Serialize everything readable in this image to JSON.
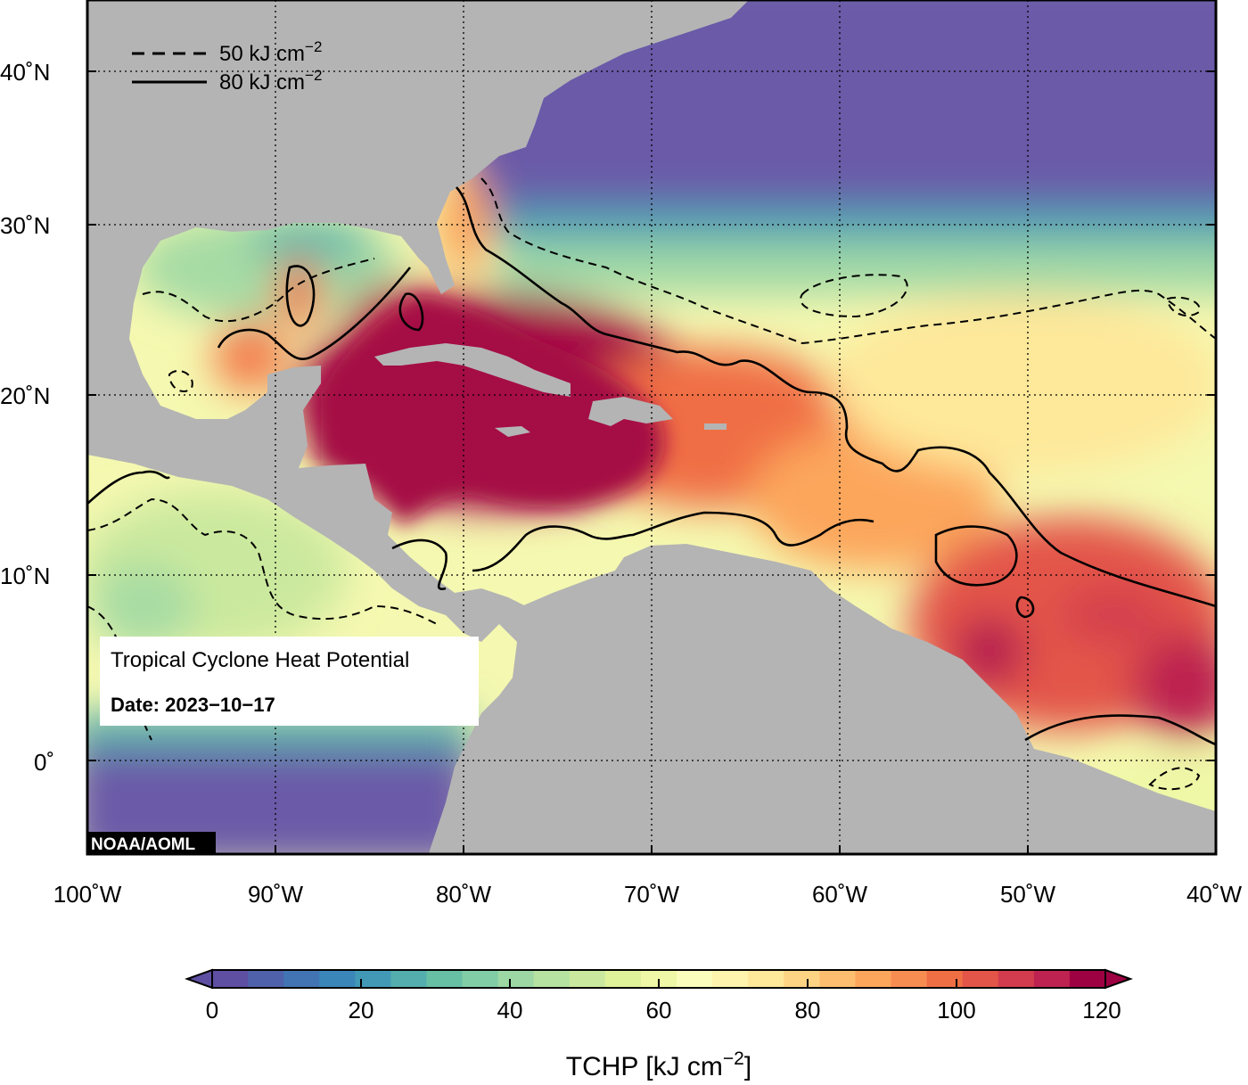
{
  "map": {
    "legend": {
      "dashed_value": "50 kJ cm",
      "solid_value": "80 kJ cm",
      "exponent": "−2"
    },
    "info_box": {
      "title": "Tropical Cyclone Heat Potential",
      "date": "Date: 2023−10−17"
    },
    "credit": "NOAA/AOML",
    "lat_ticks": [
      "40˚N",
      "30˚N",
      "20˚N",
      "10˚N",
      "0˚"
    ],
    "lon_ticks": [
      "100˚W",
      "90˚W",
      "80˚W",
      "70˚W",
      "60˚W",
      "50˚W",
      "40˚W"
    ],
    "extent": {
      "lon_min": -100,
      "lon_max": -40,
      "lat_min": -5,
      "lat_max": 44
    }
  },
  "colorbar": {
    "ticks": [
      "0",
      "20",
      "40",
      "60",
      "80",
      "100",
      "120"
    ],
    "label_main": "TCHP [kJ cm",
    "label_exp": "−2",
    "label_close": "]",
    "colors": [
      "#5e4fa2",
      "#4f61aa",
      "#4273b3",
      "#3a86b9",
      "#4199b6",
      "#54aead",
      "#67bfa4",
      "#81cda5",
      "#9dd8a4",
      "#b5e1a1",
      "#cbe99e",
      "#dff299",
      "#eef8a6",
      "#fbfdbc",
      "#fff4ad",
      "#fee89a",
      "#fdd484",
      "#fdbf6f",
      "#fca65c",
      "#f88d52",
      "#f06e44",
      "#e35548",
      "#d33c4e",
      "#bd2250",
      "#9e0142"
    ]
  },
  "colors": {
    "land": "#b4b4b4",
    "cold_water": "#6a5aa8",
    "warm_core": "#a50f45"
  }
}
